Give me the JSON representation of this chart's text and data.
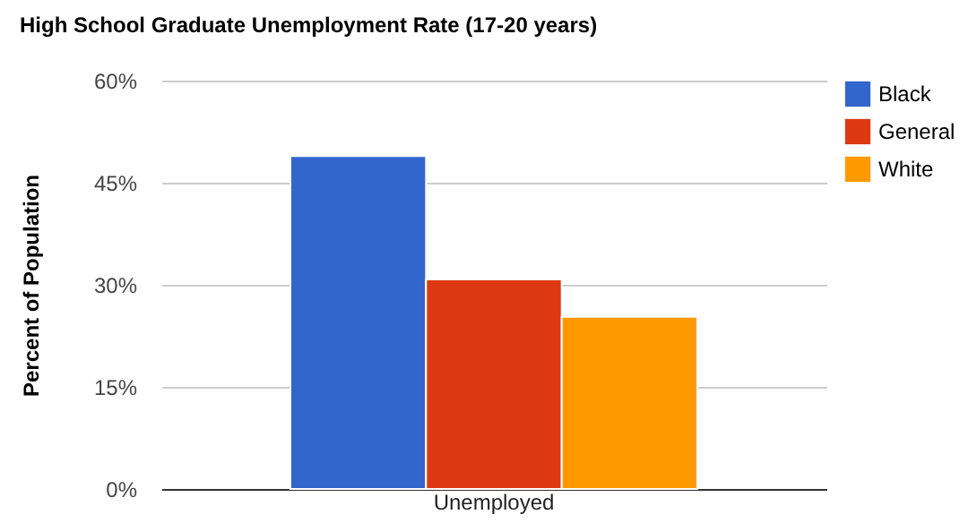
{
  "chart_data": {
    "type": "bar",
    "title": "High School Graduate Unemployment Rate (17-20 years)",
    "ylabel": "Percent of Population",
    "categories": [
      "Unemployed"
    ],
    "series": [
      {
        "name": "Black",
        "color": "#3366cc",
        "values": [
          48.9
        ]
      },
      {
        "name": "General",
        "color": "#dc3912",
        "values": [
          30.8
        ]
      },
      {
        "name": "White",
        "color": "#ff9900",
        "values": [
          25.3
        ]
      }
    ],
    "ylim": [
      0,
      60
    ],
    "yticks": [
      {
        "value": 0,
        "label": "0%"
      },
      {
        "value": 15,
        "label": "15%"
      },
      {
        "value": 30,
        "label": "30%"
      },
      {
        "value": 45,
        "label": "45%"
      },
      {
        "value": 60,
        "label": "60%"
      }
    ],
    "grid": "y",
    "legend": "top right"
  }
}
